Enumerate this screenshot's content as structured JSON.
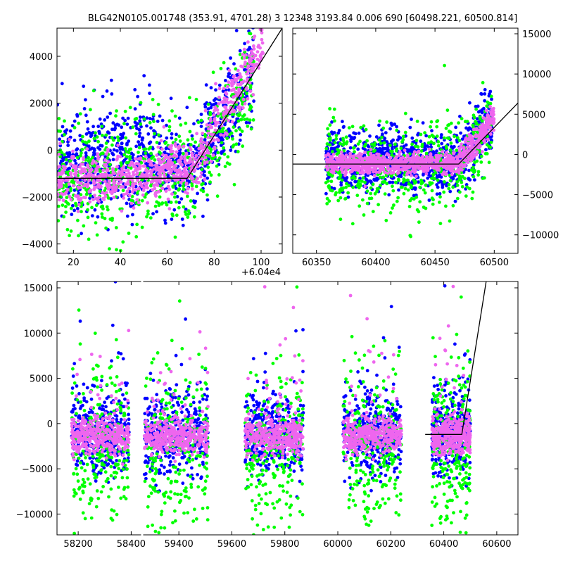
{
  "figure": {
    "title": "BLG42N0105.001748 (353.91, 4701.28)   3 12348 3193.84 0.006 690 [60498.221, 60500.814]"
  },
  "chart_data": [
    {
      "type": "scatter",
      "id": "zoom-left",
      "xlim": [
        60413,
        60509
      ],
      "ylim": [
        -4400,
        5200
      ],
      "xticks": [
        20,
        40,
        60,
        80,
        100
      ],
      "xtick_labels": [
        "20",
        "40",
        "60",
        "80",
        "100"
      ],
      "x_offset_label": "+6.04e4",
      "yticks": [
        -4000,
        -2000,
        0,
        2000,
        4000
      ],
      "ytick_labels": [
        "−4000",
        "−2000",
        "0",
        "2000",
        "4000"
      ],
      "yaxis_side": "left",
      "series": [
        {
          "color": "#0000ff",
          "clusters": [
            {
              "x": [
                60413,
                60456
              ],
              "y": -400,
              "sx": 1200,
              "n": 420
            },
            {
              "x": [
                60456,
                60470
              ],
              "y": -800,
              "sx": 900,
              "n": 140
            },
            {
              "x": [
                60470,
                60497
              ],
              "trend": [
                60470,
                -1000,
                60500,
                3800
              ],
              "sx": 1000,
              "n": 260
            }
          ]
        },
        {
          "color": "#00ff00",
          "clusters": [
            {
              "x": [
                60413,
                60456
              ],
              "y": -1100,
              "sx": 1300,
              "n": 320
            },
            {
              "x": [
                60456,
                60470
              ],
              "y": -900,
              "sx": 1200,
              "n": 90
            },
            {
              "x": [
                60470,
                60497
              ],
              "trend": [
                60470,
                -1200,
                60500,
                3600
              ],
              "sx": 1200,
              "n": 200
            }
          ]
        },
        {
          "color": "#ee66ee",
          "clusters": [
            {
              "x": [
                60413,
                60456
              ],
              "y": -1200,
              "sx": 500,
              "n": 380
            },
            {
              "x": [
                60456,
                60470
              ],
              "y": -800,
              "sx": 500,
              "n": 160
            },
            {
              "x": [
                60470,
                60501
              ],
              "trend": [
                60470,
                -1000,
                60501,
                4600
              ],
              "sx": 600,
              "n": 260
            }
          ]
        }
      ],
      "model_line": {
        "x": [
          60413,
          60468.5,
          60509
        ],
        "y": [
          -1200,
          -1200,
          5200
        ]
      }
    },
    {
      "type": "scatter",
      "id": "zoom-right",
      "xlim": [
        60330,
        60520
      ],
      "ylim": [
        -12300,
        15700
      ],
      "xticks": [
        60350,
        60400,
        60450,
        60500
      ],
      "xtick_labels": [
        "60350",
        "60400",
        "60450",
        "60500"
      ],
      "yticks": [
        -10000,
        -5000,
        0,
        5000,
        10000,
        15000
      ],
      "ytick_labels": [
        "−10000",
        "−5000",
        "0",
        "5000",
        "10000",
        "15000"
      ],
      "yaxis_side": "right",
      "series": [
        {
          "color": "#0000ff",
          "clusters": [
            {
              "x": [
                60358,
                60470
              ],
              "y": -800,
              "sx": 1800,
              "n": 700
            },
            {
              "x": [
                60470,
                60498
              ],
              "trend": [
                60470,
                -1000,
                60498,
                4500
              ],
              "sx": 2000,
              "n": 200
            }
          ]
        },
        {
          "color": "#00ff00",
          "clusters": [
            {
              "x": [
                60358,
                60470
              ],
              "y": -1800,
              "sx": 3000,
              "n": 420
            },
            {
              "x": [
                60470,
                60498
              ],
              "trend": [
                60470,
                -1500,
                60498,
                4000
              ],
              "sx": 2500,
              "n": 120
            }
          ]
        },
        {
          "color": "#ee66ee",
          "clusters": [
            {
              "x": [
                60358,
                60470
              ],
              "y": -1100,
              "sx": 600,
              "n": 700
            },
            {
              "x": [
                60470,
                60500
              ],
              "trend": [
                60470,
                -1000,
                60500,
                4600
              ],
              "sx": 900,
              "n": 200
            }
          ]
        }
      ],
      "model_line": {
        "x": [
          60330,
          60470,
          60520
        ],
        "y": [
          -1200,
          -1200,
          6400
        ]
      }
    },
    {
      "type": "scatter",
      "id": "full",
      "xlim": [
        58120,
        60680
      ],
      "ylim": [
        -12300,
        15700
      ],
      "axis_break": {
        "from": 58440,
        "to": 59260,
        "at": 58450
      },
      "xticks": [
        58200,
        58400,
        59400,
        59600,
        59800,
        60000,
        60200,
        60400,
        60600
      ],
      "xtick_labels": [
        "58200",
        "58400",
        "59400",
        "59600",
        "59800",
        "60000",
        "60200",
        "60400",
        "60600"
      ],
      "yticks": [
        -10000,
        -5000,
        0,
        5000,
        10000,
        15000
      ],
      "ytick_labels": [
        "−10000",
        "−5000",
        "0",
        "5000",
        "10000",
        "15000"
      ],
      "yaxis_side": "left",
      "seasons": [
        [
          58175,
          58392
        ],
        [
          59270,
          59510
        ],
        [
          59650,
          59870
        ],
        [
          60020,
          60240
        ],
        [
          60355,
          60500
        ]
      ],
      "series": [
        {
          "color": "#0000ff",
          "y": -1300,
          "sy": 2200,
          "n": 360
        },
        {
          "color": "#00ff00",
          "y": -3000,
          "sy": 4200,
          "n": 240
        },
        {
          "color": "#ee66ee",
          "y": -1400,
          "sy": 1000,
          "n": 380
        }
      ],
      "model_line": {
        "x": [
          60330,
          60468,
          60560
        ],
        "y": [
          -1200,
          -1200,
          15700
        ]
      }
    }
  ]
}
